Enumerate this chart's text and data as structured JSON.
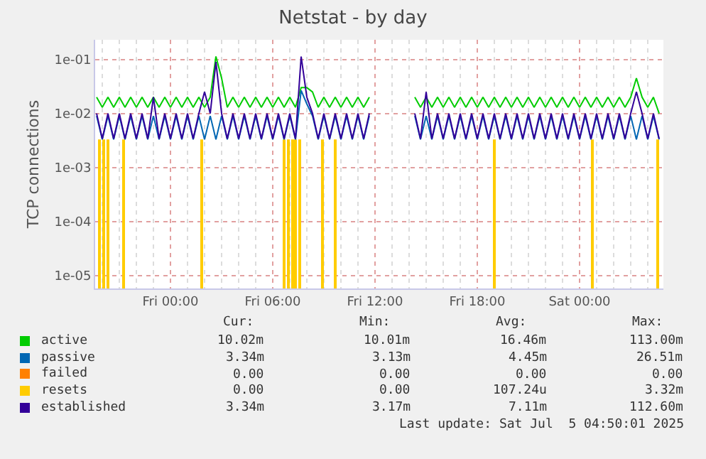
{
  "chart_data": {
    "type": "line",
    "title": "Netstat - by day",
    "ylabel": "TCP connections",
    "log": "y",
    "grid": true,
    "legend": "bottom",
    "xlim": [
      "2025-07-03T19:35",
      "2025-07-05T04:55"
    ],
    "xticks": [
      {
        "value": "2025-07-04T00:00",
        "label": "Fri 00:00"
      },
      {
        "value": "2025-07-04T06:00",
        "label": "Fri 06:00"
      },
      {
        "value": "2025-07-04T12:00",
        "label": "Fri 12:00"
      },
      {
        "value": "2025-07-04T18:00",
        "label": "Fri 18:00"
      },
      {
        "value": "2025-07-05T00:00",
        "label": "Sat 00:00"
      }
    ],
    "ylim": [
      5.8e-06,
      0.23
    ],
    "yticks": [
      {
        "value": 1e-05,
        "label": "1e-05"
      },
      {
        "value": 0.0001,
        "label": "1e-04"
      },
      {
        "value": 0.001,
        "label": "1e-03"
      },
      {
        "value": 0.01,
        "label": "1e-02"
      },
      {
        "value": 0.1,
        "label": "1e-01"
      }
    ],
    "x": [
      "2025-07-03T19:40",
      "2025-07-03T20:00",
      "2025-07-03T20:20",
      "2025-07-03T20:40",
      "2025-07-03T21:00",
      "2025-07-03T21:20",
      "2025-07-03T21:40",
      "2025-07-03T22:00",
      "2025-07-03T22:20",
      "2025-07-03T22:40",
      "2025-07-03T23:00",
      "2025-07-03T23:20",
      "2025-07-03T23:40",
      "2025-07-04T00:00",
      "2025-07-04T00:20",
      "2025-07-04T00:40",
      "2025-07-04T01:00",
      "2025-07-04T01:20",
      "2025-07-04T01:40",
      "2025-07-04T02:00",
      "2025-07-04T02:20",
      "2025-07-04T02:40",
      "2025-07-04T03:00",
      "2025-07-04T03:20",
      "2025-07-04T03:40",
      "2025-07-04T04:00",
      "2025-07-04T04:20",
      "2025-07-04T04:40",
      "2025-07-04T05:00",
      "2025-07-04T05:20",
      "2025-07-04T05:40",
      "2025-07-04T06:00",
      "2025-07-04T06:20",
      "2025-07-04T06:40",
      "2025-07-04T07:00",
      "2025-07-04T07:20",
      "2025-07-04T07:40",
      "2025-07-04T08:00",
      "2025-07-04T08:20",
      "2025-07-04T08:40",
      "2025-07-04T09:00",
      "2025-07-04T09:20",
      "2025-07-04T09:40",
      "2025-07-04T10:00",
      "2025-07-04T10:20",
      "2025-07-04T10:40",
      "2025-07-04T11:00",
      "2025-07-04T11:20",
      "2025-07-04T11:40",
      "2025-07-04T12:00",
      "2025-07-04T12:20",
      "2025-07-04T12:40",
      "2025-07-04T13:00",
      "2025-07-04T13:20",
      "2025-07-04T13:40",
      "2025-07-04T14:00",
      "2025-07-04T14:20",
      "2025-07-04T14:40",
      "2025-07-04T15:00",
      "2025-07-04T15:20",
      "2025-07-04T15:40",
      "2025-07-04T16:00",
      "2025-07-04T16:20",
      "2025-07-04T16:40",
      "2025-07-04T17:00",
      "2025-07-04T17:20",
      "2025-07-04T17:40",
      "2025-07-04T18:00",
      "2025-07-04T18:20",
      "2025-07-04T18:40",
      "2025-07-04T19:00",
      "2025-07-04T19:20",
      "2025-07-04T19:40",
      "2025-07-04T20:00",
      "2025-07-04T20:20",
      "2025-07-04T20:40",
      "2025-07-04T21:00",
      "2025-07-04T21:20",
      "2025-07-04T21:40",
      "2025-07-04T22:00",
      "2025-07-04T22:20",
      "2025-07-04T22:40",
      "2025-07-04T23:00",
      "2025-07-04T23:20",
      "2025-07-04T23:40",
      "2025-07-05T00:00",
      "2025-07-05T00:20",
      "2025-07-05T00:40",
      "2025-07-05T01:00",
      "2025-07-05T01:20",
      "2025-07-05T01:40",
      "2025-07-05T02:00",
      "2025-07-05T02:20",
      "2025-07-05T02:40",
      "2025-07-05T03:00",
      "2025-07-05T03:20",
      "2025-07-05T03:40",
      "2025-07-05T04:00",
      "2025-07-05T04:20",
      "2025-07-05T04:40"
    ],
    "series": [
      {
        "name": "active",
        "color": "#00cc00",
        "values": [
          0.02,
          0.013,
          0.02,
          0.013,
          0.02,
          0.013,
          0.02,
          0.013,
          0.02,
          0.013,
          0.02,
          0.013,
          0.02,
          0.013,
          0.02,
          0.013,
          0.02,
          0.013,
          0.02,
          0.013,
          0.02,
          0.113,
          0.045,
          0.013,
          0.02,
          0.013,
          0.02,
          0.013,
          0.02,
          0.013,
          0.02,
          0.013,
          0.02,
          0.013,
          0.02,
          0.013,
          0.03,
          0.03,
          0.025,
          0.013,
          0.02,
          0.013,
          0.02,
          0.013,
          0.02,
          0.013,
          0.02,
          0.013,
          0.02,
          null,
          null,
          null,
          null,
          null,
          null,
          null,
          0.02,
          0.013,
          0.02,
          0.013,
          0.02,
          0.013,
          0.02,
          0.013,
          0.02,
          0.013,
          0.02,
          0.013,
          0.02,
          0.013,
          0.02,
          0.013,
          0.02,
          0.013,
          0.02,
          0.013,
          0.02,
          0.013,
          0.02,
          0.013,
          0.02,
          0.013,
          0.02,
          0.013,
          0.02,
          0.013,
          0.02,
          0.013,
          0.02,
          0.013,
          0.02,
          0.013,
          0.02,
          0.013,
          0.02,
          0.045,
          0.02,
          0.013,
          0.02,
          0.01
        ]
      },
      {
        "name": "passive",
        "color": "#0066b3",
        "values": [
          0.009,
          0.0033,
          0.009,
          0.0033,
          0.009,
          0.0033,
          0.009,
          0.0033,
          0.009,
          0.0033,
          0.009,
          0.0033,
          0.009,
          0.0033,
          0.009,
          0.0033,
          0.009,
          0.0033,
          0.009,
          0.0033,
          0.009,
          0.0033,
          0.009,
          0.0033,
          0.009,
          0.0033,
          0.009,
          0.0033,
          0.009,
          0.0033,
          0.009,
          0.0033,
          0.009,
          0.0033,
          0.009,
          0.0033,
          0.0265,
          0.015,
          0.009,
          0.0033,
          0.009,
          0.0033,
          0.009,
          0.0033,
          0.009,
          0.0033,
          0.009,
          0.0033,
          0.009,
          null,
          null,
          null,
          null,
          null,
          null,
          null,
          0.009,
          0.0033,
          0.009,
          0.0033,
          0.009,
          0.0033,
          0.009,
          0.0033,
          0.009,
          0.0033,
          0.009,
          0.0033,
          0.009,
          0.0033,
          0.009,
          0.0033,
          0.009,
          0.0033,
          0.009,
          0.0033,
          0.009,
          0.0033,
          0.009,
          0.0033,
          0.009,
          0.0033,
          0.009,
          0.0033,
          0.009,
          0.0033,
          0.009,
          0.0033,
          0.009,
          0.0033,
          0.009,
          0.0033,
          0.009,
          0.0033,
          0.009,
          0.0033,
          0.009,
          0.0033,
          0.009,
          0.0033
        ]
      },
      {
        "name": "failed",
        "color": "#ff8000",
        "values": [
          null,
          null,
          null,
          null,
          null,
          null,
          null,
          null,
          null,
          null,
          null,
          null,
          null,
          null,
          null,
          null,
          null,
          null,
          null,
          null,
          null,
          null,
          null,
          null,
          null,
          null,
          null,
          null,
          null,
          null,
          null,
          null,
          null,
          null,
          null,
          null,
          null,
          null,
          null,
          null,
          null,
          null,
          null,
          null,
          null,
          null,
          null,
          null,
          null,
          null,
          null,
          null,
          null,
          null,
          null,
          null,
          null,
          null,
          null,
          null,
          null,
          null,
          null,
          null,
          null,
          null,
          null,
          null,
          null,
          null,
          null,
          null,
          null,
          null,
          null,
          null,
          null,
          null,
          null,
          null,
          null,
          null,
          null,
          null,
          null,
          null,
          null,
          null,
          null,
          null,
          null,
          null,
          null,
          null,
          null,
          null,
          null,
          null,
          null,
          null
        ]
      },
      {
        "name": "resets",
        "color": "#ffcc00",
        "type": "bar",
        "x": [
          "2025-07-03T19:50",
          "2025-07-03T20:05",
          "2025-07-03T20:20",
          "2025-07-03T21:15",
          "2025-07-04T01:50",
          "2025-07-04T06:40",
          "2025-07-04T06:55",
          "2025-07-04T07:10",
          "2025-07-04T07:20",
          "2025-07-04T07:35",
          "2025-07-04T08:55",
          "2025-07-04T09:40",
          "2025-07-04T19:00",
          "2025-07-05T00:45",
          "2025-07-05T04:35"
        ],
        "values": [
          0.0033,
          0.0033,
          0.0033,
          0.0033,
          0.0033,
          0.0033,
          0.0033,
          0.0033,
          0.0033,
          0.0033,
          0.0033,
          0.0033,
          0.0033,
          0.0033,
          0.0033
        ]
      },
      {
        "name": "established",
        "color": "#330099",
        "values": [
          0.01,
          0.0034,
          0.01,
          0.0034,
          0.01,
          0.0034,
          0.01,
          0.0034,
          0.01,
          0.0034,
          0.02,
          0.0034,
          0.01,
          0.0034,
          0.01,
          0.0034,
          0.01,
          0.0034,
          0.01,
          0.025,
          0.01,
          0.09,
          0.01,
          0.0034,
          0.01,
          0.0034,
          0.01,
          0.0034,
          0.01,
          0.0034,
          0.01,
          0.0034,
          0.01,
          0.0034,
          0.01,
          0.0034,
          0.1126,
          0.02,
          0.01,
          0.0034,
          0.01,
          0.0034,
          0.01,
          0.0034,
          0.01,
          0.0034,
          0.01,
          0.0034,
          0.01,
          null,
          null,
          null,
          null,
          null,
          null,
          null,
          0.01,
          0.0034,
          0.025,
          0.0034,
          0.01,
          0.0034,
          0.01,
          0.0034,
          0.01,
          0.0034,
          0.01,
          0.0034,
          0.01,
          0.0034,
          0.01,
          0.0034,
          0.01,
          0.0034,
          0.01,
          0.0034,
          0.01,
          0.0034,
          0.01,
          0.0034,
          0.01,
          0.0034,
          0.01,
          0.0034,
          0.01,
          0.0034,
          0.01,
          0.0034,
          0.01,
          0.0034,
          0.01,
          0.0034,
          0.01,
          0.0034,
          0.01,
          0.025,
          0.01,
          0.0034,
          0.01,
          0.0034
        ]
      }
    ],
    "annotations": [
      "Cur:",
      "Min:",
      "Avg:",
      "Max:",
      "10.02m",
      "10.01m",
      "16.46m",
      "113.00m",
      "3.34m",
      "3.13m",
      "4.45m",
      "26.51m",
      "0.00",
      "0.00",
      "0.00",
      "0.00",
      "0.00",
      "0.00",
      "107.24u",
      "3.32m",
      "3.34m",
      "3.17m",
      "7.11m",
      "112.60m",
      "Last update: Sat Jul  5 04:50:01 2025"
    ]
  }
}
